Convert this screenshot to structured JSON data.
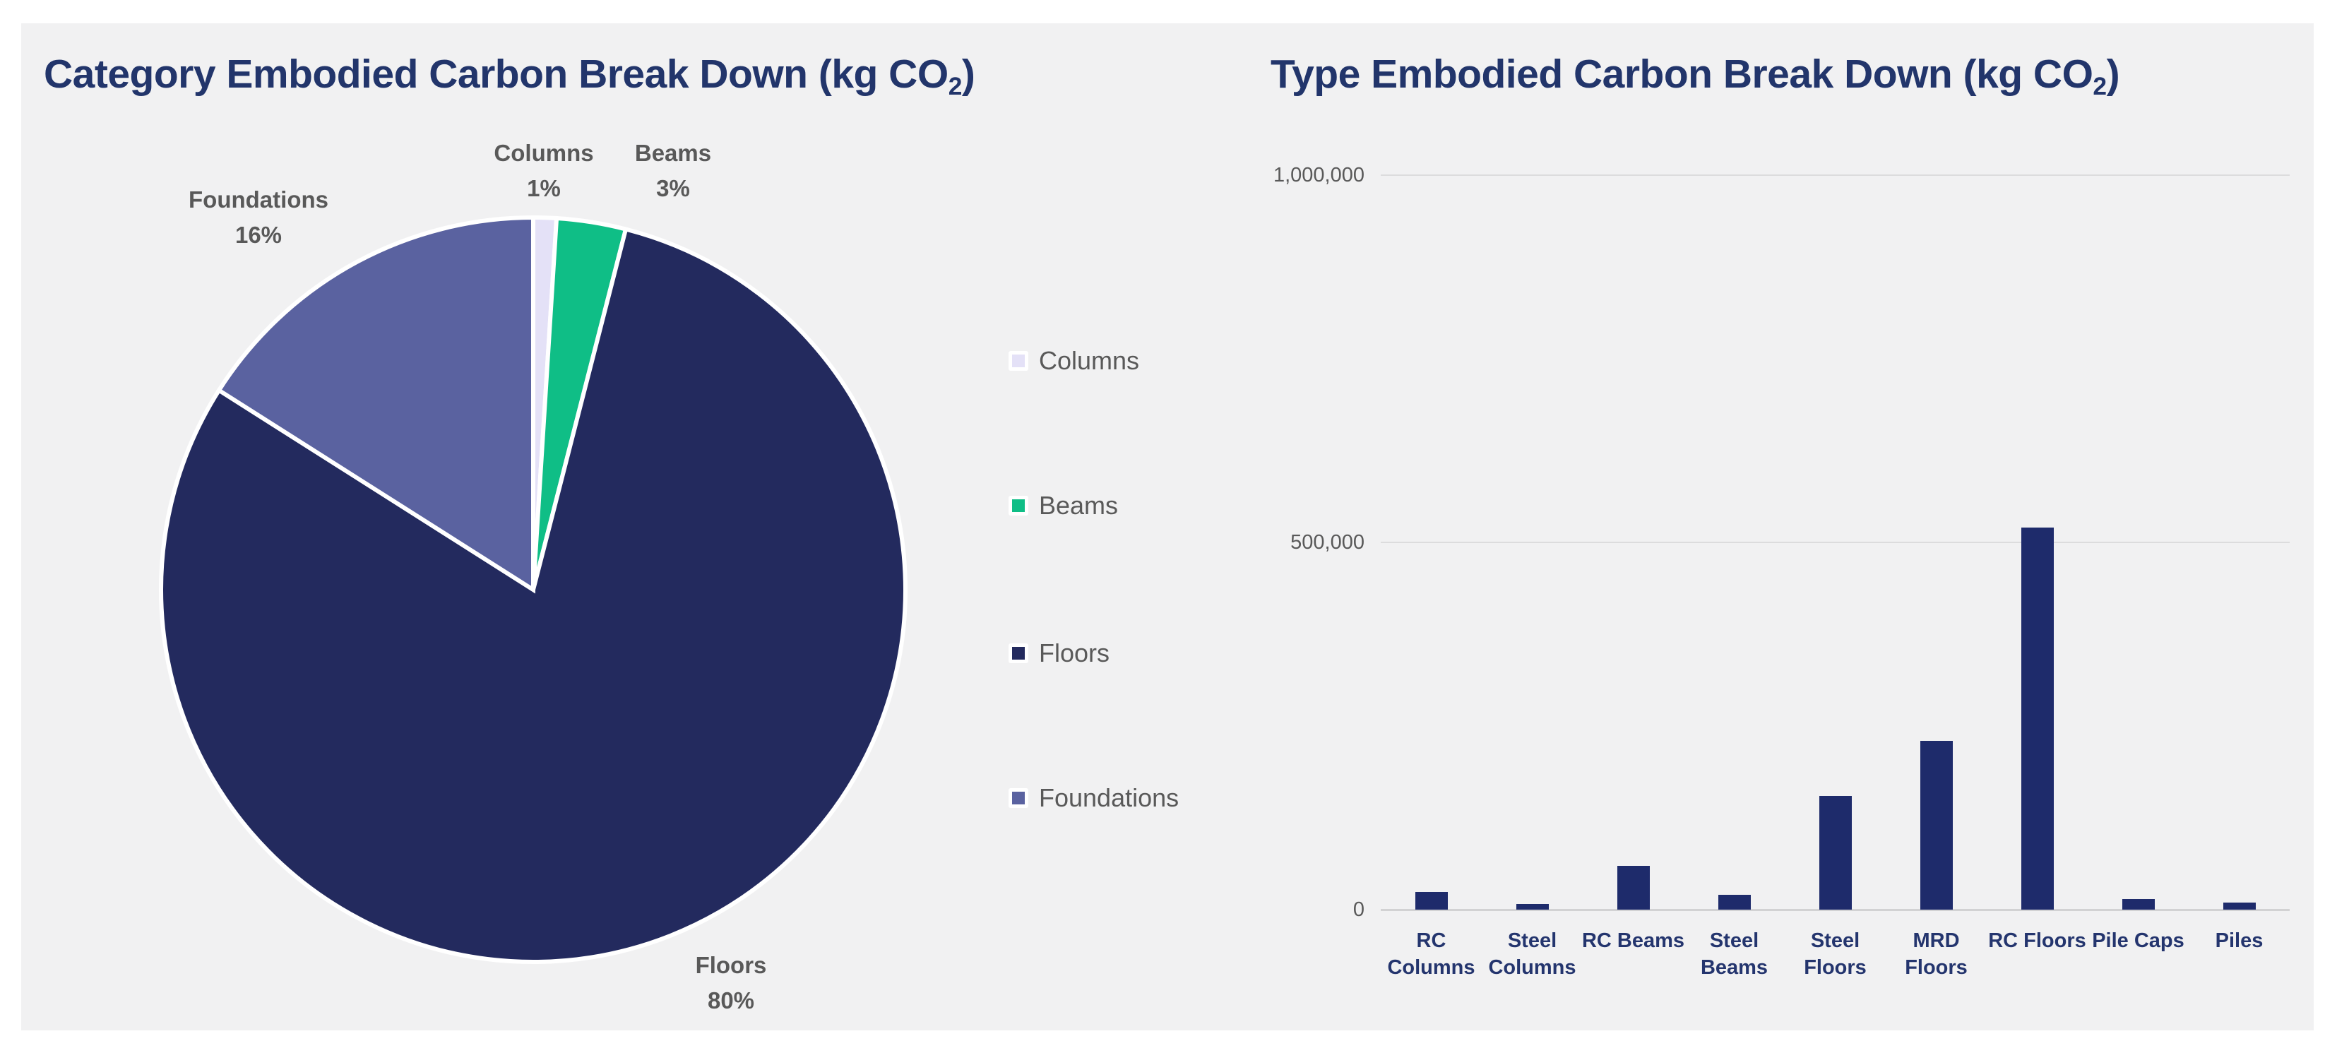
{
  "canvas": {
    "page_bg": "#ffffff",
    "bg": "#f1f1f2"
  },
  "pie": {
    "title_prefix": "Category Embodied Carbon Break Down (kg CO",
    "title_sub": "2",
    "title_suffix": ")",
    "data_labels": [
      {
        "name": "Columns",
        "pct": "1%"
      },
      {
        "name": "Beams",
        "pct": "3%"
      },
      {
        "name": "Foundations",
        "pct": "16%"
      },
      {
        "name": "Floors",
        "pct": "80%"
      }
    ],
    "legend": [
      {
        "label": "Columns",
        "color": "#e4e1f7"
      },
      {
        "label": "Beams",
        "color": "#0fbe86"
      },
      {
        "label": "Floors",
        "color": "#232a5e"
      },
      {
        "label": "Foundations",
        "color": "#5a62a0"
      }
    ]
  },
  "bar": {
    "title_prefix": "Type Embodied Carbon Break Down (kg CO",
    "title_sub": "2",
    "title_suffix": ")",
    "y_ticks": [
      "1,000,000",
      "500,000",
      "0"
    ],
    "bar_color": "#1e2b6b"
  },
  "chart_data": [
    {
      "type": "pie",
      "title": "Category Embodied Carbon Break Down (kg CO2)",
      "categories": [
        "Columns",
        "Beams",
        "Floors",
        "Foundations"
      ],
      "values_percent": [
        1,
        3,
        80,
        16
      ],
      "colors": [
        "#e4e1f7",
        "#0fbe86",
        "#232a5e",
        "#5a62a0"
      ],
      "slice_border_color": "#ffffff",
      "start_angle_deg": 0,
      "direction": "clockwise",
      "legend_position": "right",
      "label_color": "#595959"
    },
    {
      "type": "bar",
      "title": "Type Embodied Carbon Break Down (kg CO2)",
      "categories": [
        "RC Columns",
        "Steel Columns",
        "RC Beams",
        "Steel Beams",
        "Steel Floors",
        "MRD Floors",
        "RC Floors",
        "Pile Caps",
        "Piles"
      ],
      "category_label_lines": [
        [
          "RC",
          "Columns"
        ],
        [
          "Steel",
          "Columns"
        ],
        [
          "RC Beams"
        ],
        [
          "Steel",
          "Beams"
        ],
        [
          "Steel",
          "Floors"
        ],
        [
          "MRD",
          "Floors"
        ],
        [
          "RC Floors"
        ],
        [
          "Pile Caps"
        ],
        [
          "Piles"
        ]
      ],
      "values": [
        24000,
        8000,
        60000,
        20000,
        155000,
        230000,
        520000,
        14000,
        10000
      ],
      "ylim": [
        0,
        1000000
      ],
      "y_tick_values": [
        0,
        500000,
        1000000
      ],
      "y_tick_labels": [
        "0",
        "500,000",
        "1,000,000"
      ],
      "grid": true,
      "bar_color": "#1e2b6b",
      "axis_label_color": "#595959",
      "category_label_color": "#24356e"
    }
  ]
}
